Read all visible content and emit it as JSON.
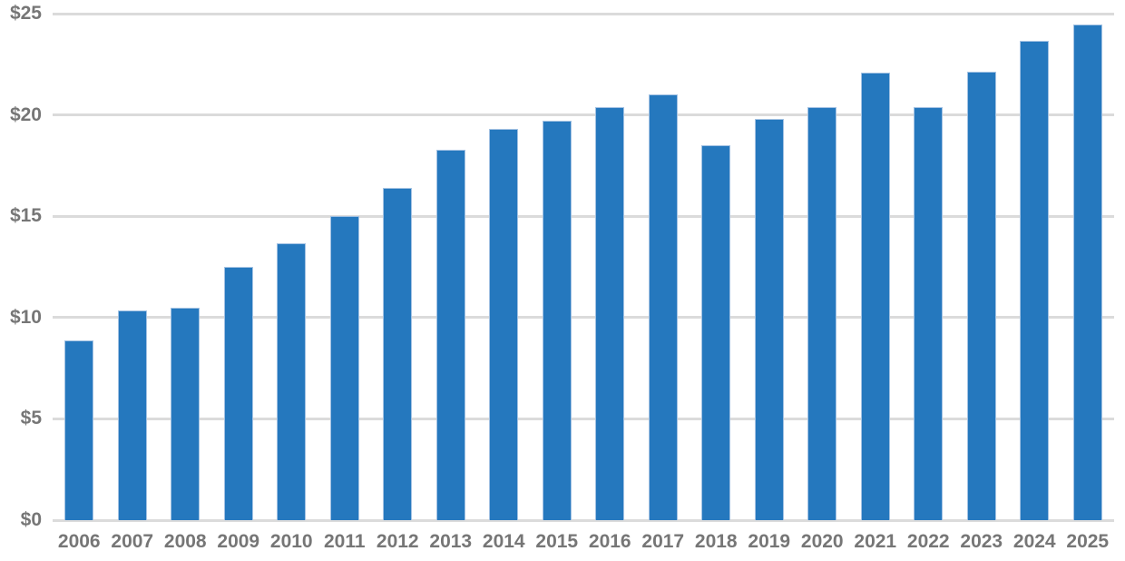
{
  "chart": {
    "background_color": "#ffffff",
    "bar_color": "#2578be",
    "bar_edge_color": "#a3c2e3",
    "gridline_color": "#dbdbdb",
    "axis_label_color": "#767676"
  },
  "chart_data": {
    "type": "bar",
    "title": "",
    "xlabel": "",
    "ylabel": "",
    "categories": [
      "2006",
      "2007",
      "2008",
      "2009",
      "2010",
      "2011",
      "2012",
      "2013",
      "2014",
      "2015",
      "2016",
      "2017",
      "2018",
      "2019",
      "2020",
      "2021",
      "2022",
      "2023",
      "2024",
      "2025"
    ],
    "values": [
      8.85,
      10.35,
      10.5,
      12.5,
      13.65,
      15.0,
      16.4,
      18.3,
      19.3,
      19.7,
      20.4,
      21.0,
      18.5,
      19.8,
      20.4,
      22.1,
      20.4,
      22.15,
      23.65,
      24.45
    ],
    "ylim": [
      0,
      25
    ],
    "ytick_interval": 5,
    "ytick_labels_top_down": [
      "$25",
      "$20",
      "$15",
      "$10",
      "$5",
      "$0"
    ],
    "currency_prefix": "$",
    "grid": "horizontal",
    "legend_position": "none"
  }
}
